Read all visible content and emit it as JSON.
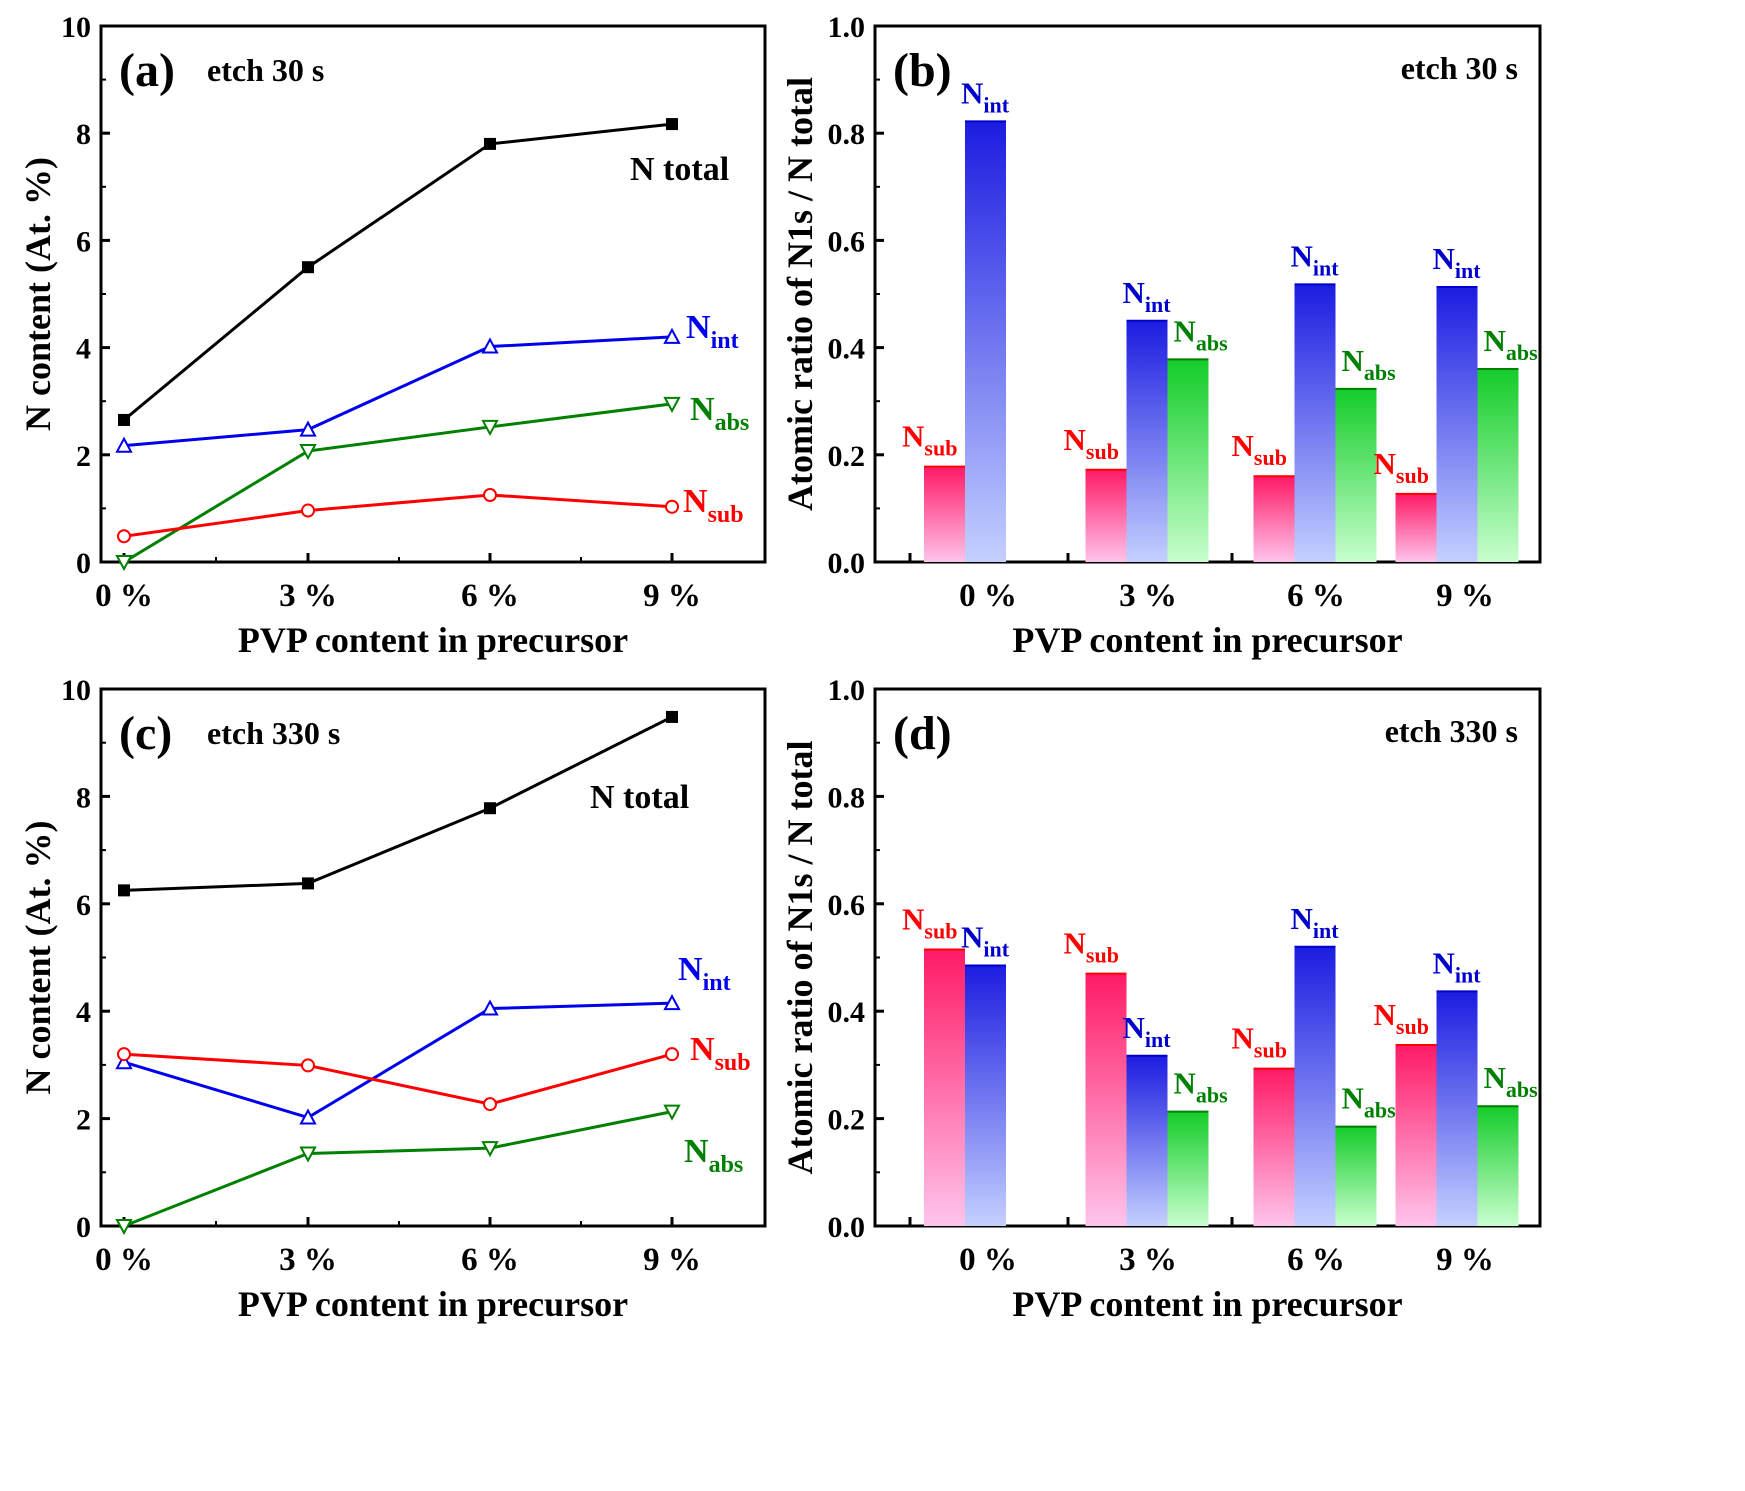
{
  "chart_data": [
    {
      "panel": "a",
      "panel_label": "(a)",
      "etch_label": "etch 30 s",
      "type": "line",
      "xlabel": "PVP content in precursor",
      "ylabel": "N content (At. %)",
      "categories": [
        "0 %",
        "3 %",
        "6 %",
        "9 %"
      ],
      "ylim": [
        0,
        10
      ],
      "yticks": [
        "0",
        "2",
        "4",
        "6",
        "8",
        "10"
      ],
      "series": [
        {
          "name": "N total",
          "label_base": "N total",
          "label_sub": "",
          "color": "#000000",
          "marker": "square",
          "values": [
            2.65,
            5.5,
            7.8,
            8.17
          ]
        },
        {
          "name": "N_int",
          "label_base": "N",
          "label_sub": "int",
          "color": "#0000ee",
          "marker": "triangle-up",
          "values": [
            2.17,
            2.47,
            4.02,
            4.2
          ]
        },
        {
          "name": "N_abs",
          "label_base": "N",
          "label_sub": "abs",
          "color": "#008000",
          "marker": "triangle-down",
          "values": [
            0.0,
            2.07,
            2.52,
            2.95
          ]
        },
        {
          "name": "N_sub",
          "label_base": "N",
          "label_sub": "sub",
          "color": "#ff0000",
          "marker": "circle",
          "values": [
            0.48,
            0.96,
            1.25,
            1.03
          ]
        }
      ]
    },
    {
      "panel": "b",
      "panel_label": "(b)",
      "etch_label": "etch 30 s",
      "type": "bar",
      "xlabel": "PVP content in precursor",
      "ylabel": "Atomic ratio of N1s / N total",
      "categories": [
        "0 %",
        "3 %",
        "6 %",
        "9 %"
      ],
      "ylim": [
        0,
        1.0
      ],
      "yticks": [
        "0.0",
        "0.2",
        "0.4",
        "0.6",
        "0.8",
        "1.0"
      ],
      "series": [
        {
          "name": "N_sub",
          "label_base": "N",
          "label_sub": "sub",
          "color": "#ff0000",
          "values": [
            0.178,
            0.172,
            0.16,
            0.127
          ]
        },
        {
          "name": "N_int",
          "label_base": "N",
          "label_sub": "int",
          "color": "#0000ee",
          "values": [
            0.822,
            0.45,
            0.518,
            0.513
          ]
        },
        {
          "name": "N_abs",
          "label_base": "N",
          "label_sub": "abs",
          "color": "#008000",
          "values": [
            null,
            0.378,
            0.323,
            0.36
          ]
        }
      ]
    },
    {
      "panel": "c",
      "panel_label": "(c)",
      "etch_label": "etch 330 s",
      "type": "line",
      "xlabel": "PVP content in precursor",
      "ylabel": "N content (At. %)",
      "categories": [
        "0 %",
        "3 %",
        "6 %",
        "9 %"
      ],
      "ylim": [
        0,
        10
      ],
      "yticks": [
        "0",
        "2",
        "4",
        "6",
        "8",
        "10"
      ],
      "series": [
        {
          "name": "N total",
          "label_base": "N total",
          "label_sub": "",
          "color": "#000000",
          "marker": "square",
          "values": [
            6.25,
            6.38,
            7.78,
            9.48
          ]
        },
        {
          "name": "N_int",
          "label_base": "N",
          "label_sub": "int",
          "color": "#0000ee",
          "marker": "triangle-up",
          "values": [
            3.05,
            2.02,
            4.05,
            4.15
          ]
        },
        {
          "name": "N_sub",
          "label_base": "N",
          "label_sub": "sub",
          "color": "#ff0000",
          "marker": "circle",
          "values": [
            3.2,
            2.99,
            2.27,
            3.2
          ]
        },
        {
          "name": "N_abs",
          "label_base": "N",
          "label_sub": "abs",
          "color": "#008000",
          "marker": "triangle-down",
          "values": [
            0.0,
            1.35,
            1.45,
            2.13
          ]
        }
      ]
    },
    {
      "panel": "d",
      "panel_label": "(d)",
      "etch_label": "etch 330 s",
      "type": "bar",
      "xlabel": "PVP content in precursor",
      "ylabel": "Atomic ratio of N1s / N total",
      "categories": [
        "0 %",
        "3 %",
        "6 %",
        "9 %"
      ],
      "ylim": [
        0,
        1.0
      ],
      "yticks": [
        "0.0",
        "0.2",
        "0.4",
        "0.6",
        "0.8",
        "1.0"
      ],
      "series": [
        {
          "name": "N_sub",
          "label_base": "N",
          "label_sub": "sub",
          "color": "#ff0000",
          "values": [
            0.515,
            0.47,
            0.293,
            0.337
          ]
        },
        {
          "name": "N_int",
          "label_base": "N",
          "label_sub": "int",
          "color": "#0000ee",
          "values": [
            0.485,
            0.317,
            0.52,
            0.437
          ]
        },
        {
          "name": "N_abs",
          "label_base": "N",
          "label_sub": "abs",
          "color": "#008000",
          "values": [
            null,
            0.213,
            0.185,
            0.223
          ]
        }
      ]
    }
  ]
}
